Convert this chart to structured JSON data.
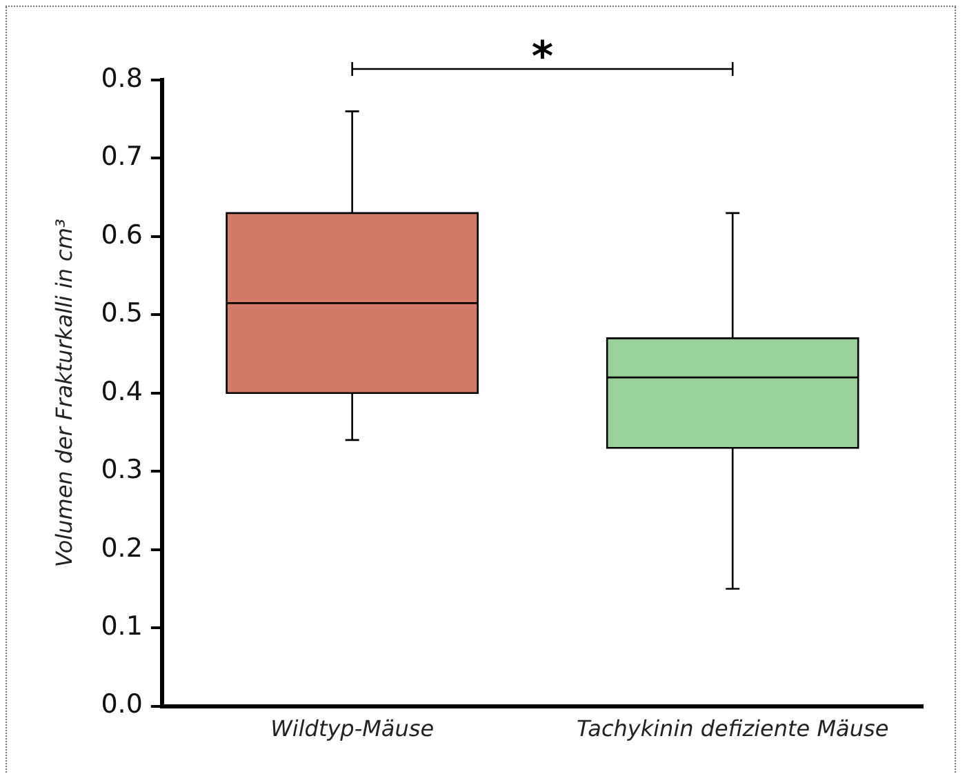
{
  "chart_data": {
    "type": "box",
    "ylabel": "Volumen der Frakturkalli in cm³",
    "categories": [
      "Wildtyp-Mäuse",
      "Tachykinin defiziente Mäuse"
    ],
    "boxes": [
      {
        "low": 0.34,
        "q1": 0.4,
        "median": 0.515,
        "q3": 0.63,
        "high": 0.76
      },
      {
        "low": 0.15,
        "q1": 0.33,
        "median": 0.42,
        "q3": 0.47,
        "high": 0.63
      }
    ],
    "colors": [
      "#d47a68",
      "#9ad198"
    ],
    "ylim": [
      0,
      0.8
    ],
    "yticks": [
      {
        "value": 0,
        "label": "0.0"
      },
      0.1,
      0.2,
      0.3,
      0.4,
      0.5,
      0.6,
      0.7,
      0.8
    ],
    "grid": false,
    "legend": false,
    "annotations": [
      "*"
    ]
  }
}
